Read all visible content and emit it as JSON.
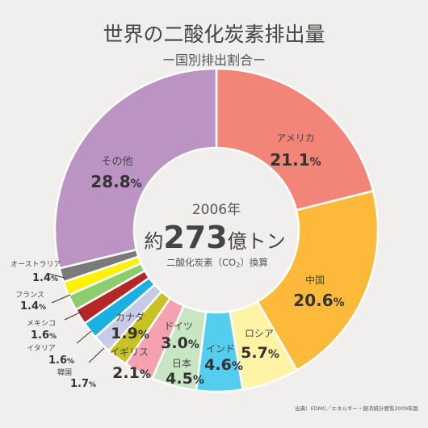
{
  "title": "世界の二酸化炭素排出量",
  "subtitle": "ー国別排出割合ー",
  "center": {
    "year": "2006年",
    "prefix": "約",
    "amount": "273",
    "unit": "億トン",
    "note": "二酸化炭素（CO",
    "note_sub": "2",
    "note_end": "）換算"
  },
  "source": "出典）EDMC／エネルギー・経済統計要覧2009年版",
  "chart_data": {
    "type": "pie",
    "title": "世界の二酸化炭素排出量",
    "subtitle": "ー国別排出割合ー",
    "unit": "%",
    "slices": [
      {
        "label": "アメリカ",
        "value": 21.1,
        "display": "21.1%",
        "color": "#f28478"
      },
      {
        "label": "中国",
        "value": 20.6,
        "display": "20.6%",
        "color": "#fdba3a"
      },
      {
        "label": "ロシア",
        "value": 5.7,
        "display": "5.7%",
        "color": "#fff3a6"
      },
      {
        "label": "インド",
        "value": 4.6,
        "display": "4.6%",
        "color": "#54cdee"
      },
      {
        "label": "日本",
        "value": 4.5,
        "display": "4.5%",
        "color": "#c9e6c2"
      },
      {
        "label": "ドイツ",
        "value": 3.0,
        "display": "3.0%",
        "color": "#f4a2ad"
      },
      {
        "label": "イギリス",
        "value": 2.1,
        "display": "2.1%",
        "color": "#c8c323"
      },
      {
        "label": "カナダ",
        "value": 1.9,
        "display": "1.9%",
        "color": "#c7cbe8"
      },
      {
        "label": "韓国",
        "value": 1.7,
        "display": "1.7%",
        "color": "#1ab0e2"
      },
      {
        "label": "イタリア",
        "value": 1.6,
        "display": "1.6%",
        "color": "#b52626"
      },
      {
        "label": "メキシコ",
        "value": 1.6,
        "display": "1.6%",
        "color": "#8ccd6e"
      },
      {
        "label": "フランス",
        "value": 1.4,
        "display": "1.4%",
        "color": "#fff200"
      },
      {
        "label": "オーストラリア",
        "value": 1.4,
        "display": "1.4%",
        "color": "#7a7a7a"
      },
      {
        "label": "その他",
        "value": 28.8,
        "display": "28.8%",
        "color": "#bc94c4"
      }
    ]
  }
}
